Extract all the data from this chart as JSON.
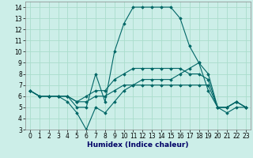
{
  "title": "",
  "xlabel": "Humidex (Indice chaleur)",
  "xlim": [
    -0.5,
    23.5
  ],
  "ylim": [
    3,
    14.5
  ],
  "yticks": [
    3,
    4,
    5,
    6,
    7,
    8,
    9,
    10,
    11,
    12,
    13,
    14
  ],
  "xticks": [
    0,
    1,
    2,
    3,
    4,
    5,
    6,
    7,
    8,
    9,
    10,
    11,
    12,
    13,
    14,
    15,
    16,
    17,
    18,
    19,
    20,
    21,
    22,
    23
  ],
  "background_color": "#cceee8",
  "grid_color": "#aaddcc",
  "line_color": "#006666",
  "curves": [
    [
      6.5,
      6.0,
      6.0,
      6.0,
      6.0,
      5.0,
      5.0,
      8.0,
      5.5,
      10.0,
      12.5,
      14.0,
      14.0,
      14.0,
      14.0,
      14.0,
      13.0,
      10.5,
      9.0,
      6.5,
      5.0,
      5.0,
      5.5,
      5.0
    ],
    [
      6.5,
      6.0,
      6.0,
      6.0,
      5.5,
      4.5,
      3.0,
      5.0,
      4.5,
      5.5,
      6.5,
      7.0,
      7.5,
      7.5,
      7.5,
      7.5,
      8.0,
      8.5,
      9.0,
      8.0,
      5.0,
      4.5,
      5.0,
      5.0
    ],
    [
      6.5,
      6.0,
      6.0,
      6.0,
      6.0,
      5.5,
      6.0,
      6.5,
      6.5,
      7.5,
      8.0,
      8.5,
      8.5,
      8.5,
      8.5,
      8.5,
      8.5,
      8.0,
      8.0,
      7.5,
      5.0,
      5.0,
      5.5,
      5.0
    ],
    [
      6.5,
      6.0,
      6.0,
      6.0,
      6.0,
      5.5,
      5.5,
      6.0,
      6.0,
      6.5,
      7.0,
      7.0,
      7.0,
      7.0,
      7.0,
      7.0,
      7.0,
      7.0,
      7.0,
      7.0,
      5.0,
      5.0,
      5.5,
      5.0
    ]
  ]
}
